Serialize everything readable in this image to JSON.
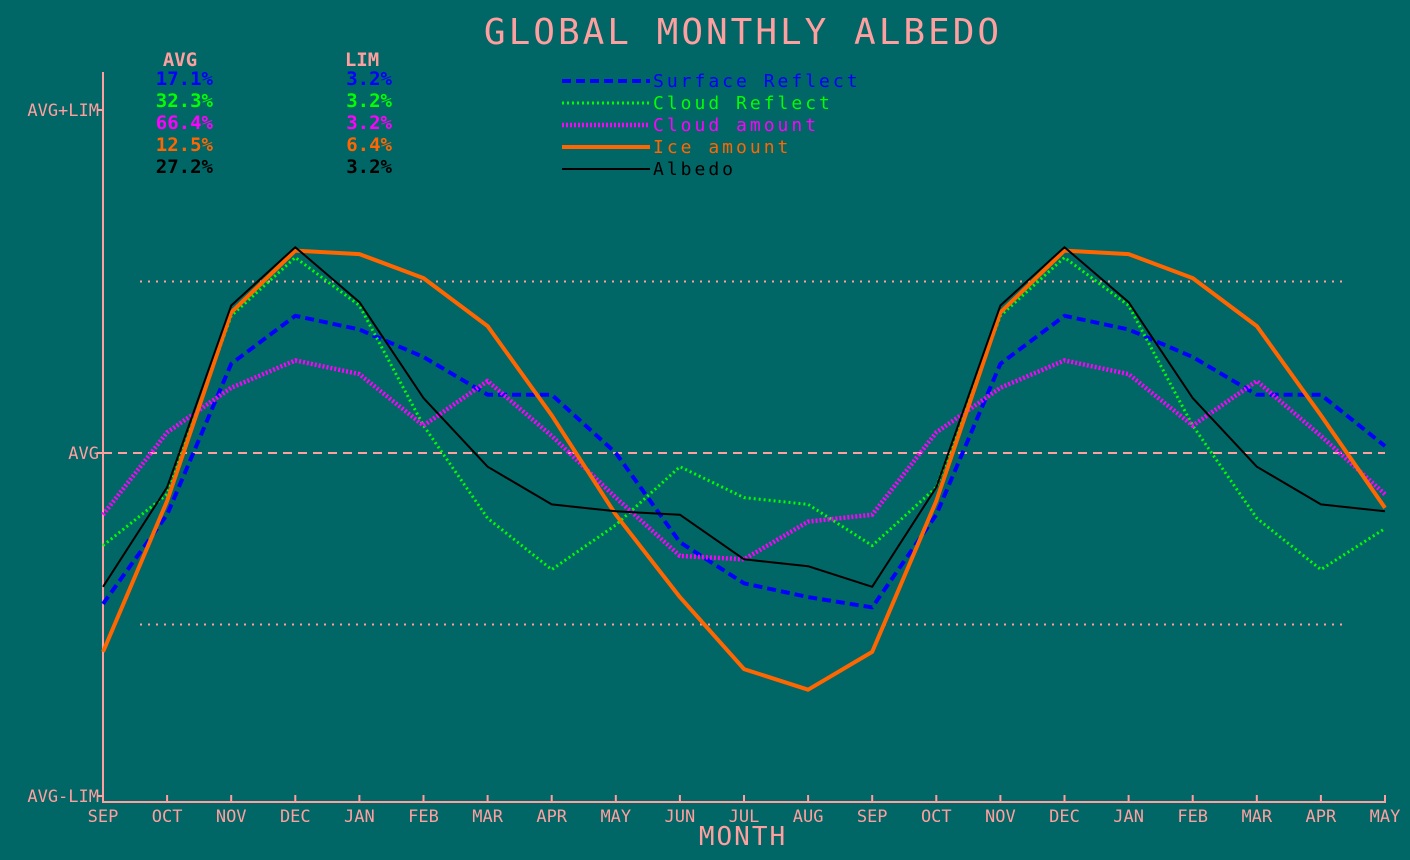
{
  "chart_data": {
    "type": "line",
    "title": "GLOBAL MONTHLY ALBEDO",
    "xlabel": "MONTH",
    "ylabel": "",
    "y_tick_labels": [
      "AVG+LIM",
      "AVG",
      "AVG-LIM"
    ],
    "ylim": [
      -1,
      1
    ],
    "x": [
      "SEP",
      "OCT",
      "NOV",
      "DEC",
      "JAN",
      "FEB",
      "MAR",
      "APR",
      "MAY",
      "JUN",
      "JUL",
      "AUG",
      "SEP",
      "OCT",
      "NOV",
      "DEC",
      "JAN",
      "FEB",
      "MAR",
      "APR",
      "MAY"
    ],
    "reference_lines": [
      {
        "y": 0.5,
        "style": "dotted",
        "color": "#ff9f9f"
      },
      {
        "y": 0.0,
        "style": "dashed",
        "color": "#ff9f9f"
      },
      {
        "y": -0.5,
        "style": "dotted",
        "color": "#ff9f9f"
      }
    ],
    "table_headers": {
      "avg": "AVG",
      "lim": "LIM"
    },
    "series": [
      {
        "name": "Surface Reflect",
        "avg": "17.1%",
        "lim": "3.2%",
        "color": "#0000ff",
        "style": "dashed",
        "values": [
          -0.44,
          -0.18,
          0.26,
          0.4,
          0.36,
          0.28,
          0.17,
          0.17,
          0.0,
          -0.26,
          -0.38,
          -0.42,
          -0.45,
          -0.18,
          0.26,
          0.4,
          0.36,
          0.28,
          0.17,
          0.17,
          0.02
        ]
      },
      {
        "name": "Cloud Reflect",
        "avg": "32.3%",
        "lim": "3.2%",
        "color": "#00ff00",
        "style": "dotted",
        "values": [
          -0.27,
          -0.12,
          0.4,
          0.57,
          0.43,
          0.08,
          -0.19,
          -0.34,
          -0.21,
          -0.04,
          -0.13,
          -0.15,
          -0.27,
          -0.1,
          0.4,
          0.57,
          0.43,
          0.08,
          -0.19,
          -0.34,
          -0.22
        ]
      },
      {
        "name": "Cloud amount",
        "avg": "66.4%",
        "lim": "3.2%",
        "color": "#ff00ff",
        "style": "dotted-thick",
        "values": [
          -0.18,
          0.06,
          0.19,
          0.27,
          0.23,
          0.08,
          0.21,
          0.05,
          -0.13,
          -0.3,
          -0.31,
          -0.2,
          -0.18,
          0.06,
          0.19,
          0.27,
          0.23,
          0.08,
          0.21,
          0.05,
          -0.12
        ]
      },
      {
        "name": "Ice amount",
        "avg": "12.5%",
        "lim": "6.4%",
        "color": "#ff6600",
        "style": "solid-thick",
        "values": [
          -0.58,
          -0.14,
          0.41,
          0.59,
          0.58,
          0.51,
          0.37,
          0.11,
          -0.18,
          -0.42,
          -0.63,
          -0.69,
          -0.58,
          -0.14,
          0.41,
          0.59,
          0.58,
          0.51,
          0.37,
          0.11,
          -0.16
        ]
      },
      {
        "name": "Albedo",
        "avg": "27.2%",
        "lim": "3.2%",
        "color": "#000000",
        "style": "solid",
        "values": [
          -0.39,
          -0.1,
          0.43,
          0.6,
          0.44,
          0.16,
          -0.04,
          -0.15,
          -0.17,
          -0.18,
          -0.31,
          -0.33,
          -0.39,
          -0.1,
          0.43,
          0.6,
          0.44,
          0.16,
          -0.04,
          -0.15,
          -0.17
        ]
      }
    ]
  }
}
